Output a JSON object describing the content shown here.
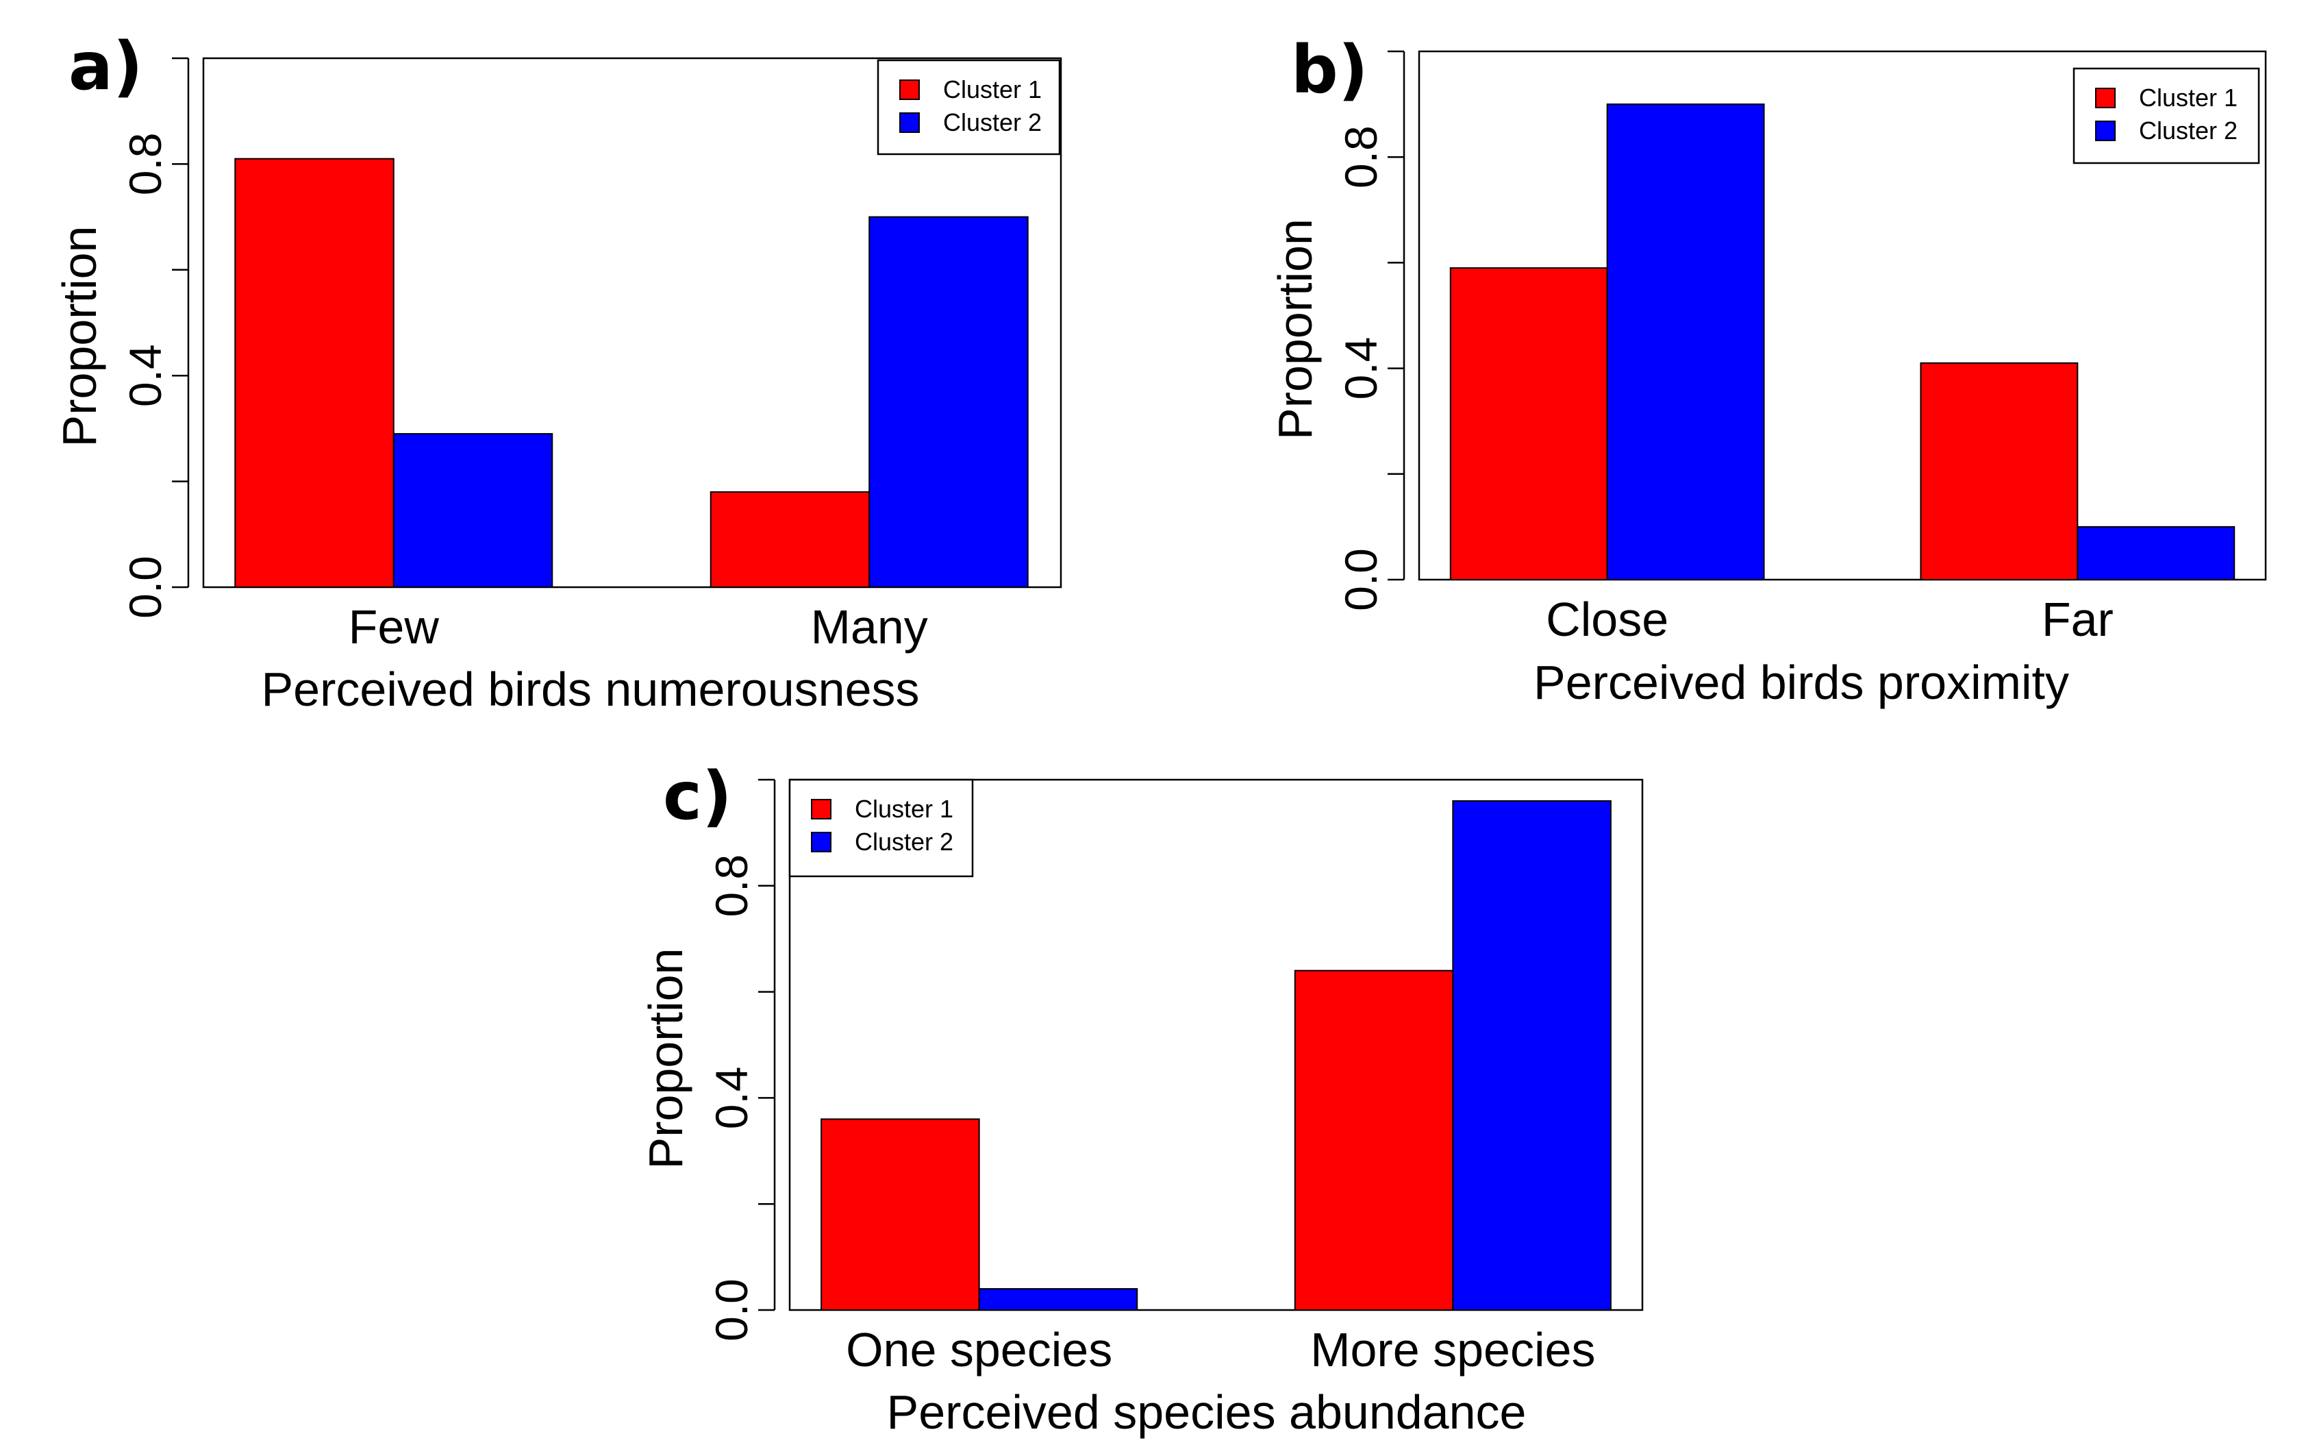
{
  "colors": {
    "cluster1": "#ff0000",
    "cluster2": "#0000ff"
  },
  "chart_data": [
    {
      "type": "bar",
      "panel": "a)",
      "categories": [
        "Few",
        "Many"
      ],
      "series": [
        {
          "name": "Cluster 1",
          "values": [
            0.81,
            0.18
          ]
        },
        {
          "name": "Cluster 2",
          "values": [
            0.29,
            0.7
          ]
        }
      ],
      "xlabel": "Perceived birds numerousness",
      "ylabel": "Proportion",
      "ylim": [
        0,
        1.0
      ],
      "yticks": [
        0.0,
        0.4,
        0.8
      ],
      "ytick_labels": [
        "0.0",
        "0.4",
        "0.8"
      ],
      "legend": [
        "Cluster 1",
        "Cluster 2"
      ],
      "legend_position": "top-right"
    },
    {
      "type": "bar",
      "panel": "b)",
      "categories": [
        "Close",
        "Far"
      ],
      "series": [
        {
          "name": "Cluster 1",
          "values": [
            0.59,
            0.41
          ]
        },
        {
          "name": "Cluster 2",
          "values": [
            0.9,
            0.1
          ]
        }
      ],
      "xlabel": "Perceived birds proximity",
      "ylabel": "Proportion",
      "ylim": [
        0,
        1.0
      ],
      "yticks": [
        0.0,
        0.4,
        0.8
      ],
      "ytick_labels": [
        "0.0",
        "0.4",
        "0.8"
      ],
      "legend": [
        "Cluster 1",
        "Cluster 2"
      ],
      "legend_position": "top-right"
    },
    {
      "type": "bar",
      "panel": "c)",
      "categories": [
        "One species",
        "More species"
      ],
      "series": [
        {
          "name": "Cluster 1",
          "values": [
            0.36,
            0.64
          ]
        },
        {
          "name": "Cluster 2",
          "values": [
            0.04,
            0.96
          ]
        }
      ],
      "xlabel": "Perceived species abundance",
      "ylabel": "Proportion",
      "ylim": [
        0,
        1.0
      ],
      "yticks": [
        0.0,
        0.4,
        0.8
      ],
      "ytick_labels": [
        "0.0",
        "0.4",
        "0.8"
      ],
      "legend": [
        "Cluster 1",
        "Cluster 2"
      ],
      "legend_position": "top-left"
    }
  ]
}
